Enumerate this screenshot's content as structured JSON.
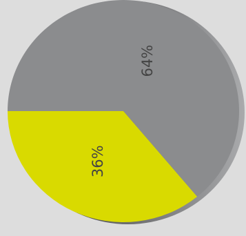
{
  "chart_data": {
    "type": "pie",
    "title": "",
    "slices": [
      {
        "label": "64%",
        "value": 64,
        "color": "#8b8c8e"
      },
      {
        "label": "36%",
        "value": 36,
        "color": "#d9da00"
      }
    ],
    "legend": "none",
    "grid": false
  },
  "colors": {
    "background": "#dddddd",
    "edge_dark": "#2e2e30",
    "edge_light": "#a9aaac"
  }
}
